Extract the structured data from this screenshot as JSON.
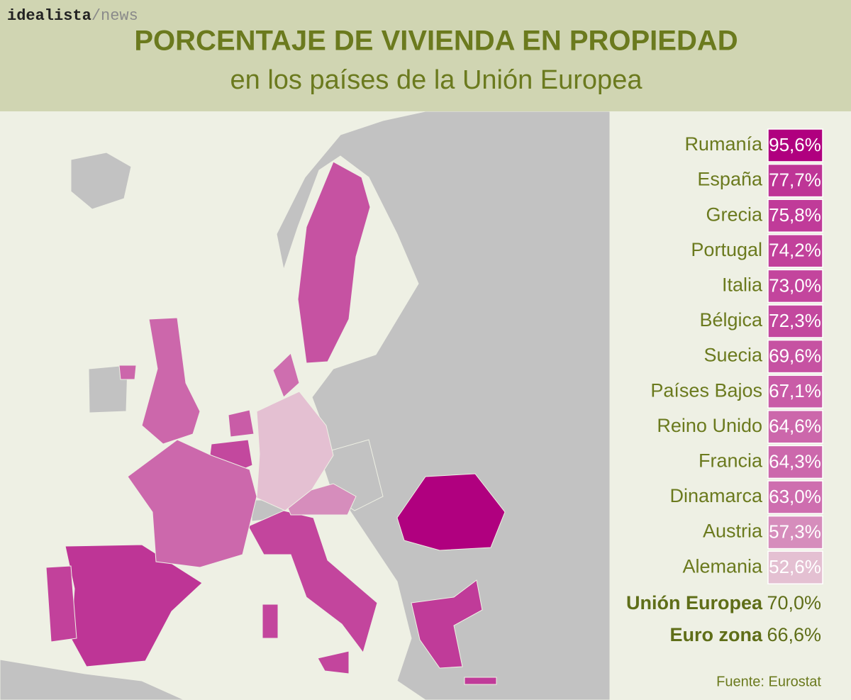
{
  "header": {
    "brand": "idealista",
    "brand_suffix": "/news",
    "title": "PORCENTAJE DE VIVIENDA EN PROPIEDAD",
    "subtitle": "en los países de la Unión Europea"
  },
  "rows": [
    {
      "name": "Rumanía",
      "value": 95.6,
      "label": "95,6%"
    },
    {
      "name": "España",
      "value": 77.7,
      "label": "77,7%"
    },
    {
      "name": "Grecia",
      "value": 75.8,
      "label": "75,8%"
    },
    {
      "name": "Portugal",
      "value": 74.2,
      "label": "74,2%"
    },
    {
      "name": "Italia",
      "value": 73.0,
      "label": "73,0%"
    },
    {
      "name": "Bélgica",
      "value": 72.3,
      "label": "72,3%"
    },
    {
      "name": "Suecia",
      "value": 69.6,
      "label": "69,6%"
    },
    {
      "name": "Países Bajos",
      "value": 67.1,
      "label": "67,1%"
    },
    {
      "name": "Reino Unido",
      "value": 64.6,
      "label": "64,6%"
    },
    {
      "name": "Francia",
      "value": 64.3,
      "label": "64,3%"
    },
    {
      "name": "Dinamarca",
      "value": 63.0,
      "label": "63,0%"
    },
    {
      "name": "Austria",
      "value": 57.3,
      "label": "57,3%"
    },
    {
      "name": "Alemania",
      "value": 52.6,
      "label": "52,6%"
    }
  ],
  "totals": [
    {
      "name": "Unión Europea",
      "value": "70,0%"
    },
    {
      "name": "Euro zona",
      "value": "66,6%"
    }
  ],
  "source": "Fuente: Eurostat"
}
